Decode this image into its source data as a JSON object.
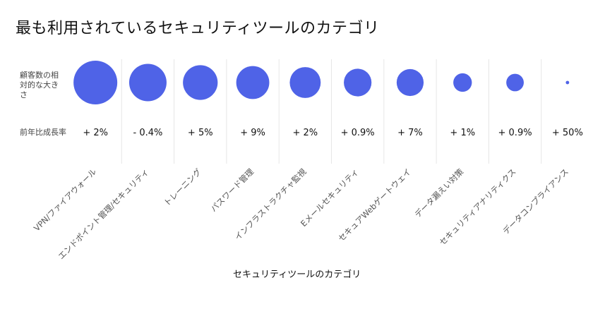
{
  "title": "最も利用されているセキュリティツールのカテゴリ",
  "row_labels": {
    "size": "顧客数の相対的な大きさ",
    "growth": "前年比成長率"
  },
  "colors": {
    "bubble": "#4f63e7",
    "divider": "#e6e6e6",
    "text": "#111111",
    "muted": "#555555"
  },
  "chart_data": {
    "type": "bubble",
    "title": "最も利用されているセキュリティツールのカテゴリ",
    "xlabel": "セキュリティツールのカテゴリ",
    "categories": [
      "VPN/ファイアウォール",
      "エンドポイント管理/セキュリティ",
      "トレーニング",
      "パスワード管理",
      "インフラストラクチャ監視",
      "Eメールセキュリティ",
      "セキュアWebゲートウェイ",
      "データ漏えい対策",
      "セキュリティアナリティクス",
      "データコンプライアンス"
    ],
    "relative_size": [
      1.0,
      0.73,
      0.63,
      0.57,
      0.5,
      0.4,
      0.38,
      0.18,
      0.16,
      0.006
    ],
    "growth": [
      "+ 2%",
      "- 0.4%",
      "+ 5%",
      "+ 9%",
      "+ 2%",
      "+ 0.9%",
      "+ 7%",
      "+ 1%",
      "+ 0.9%",
      "+ 50%"
    ]
  }
}
